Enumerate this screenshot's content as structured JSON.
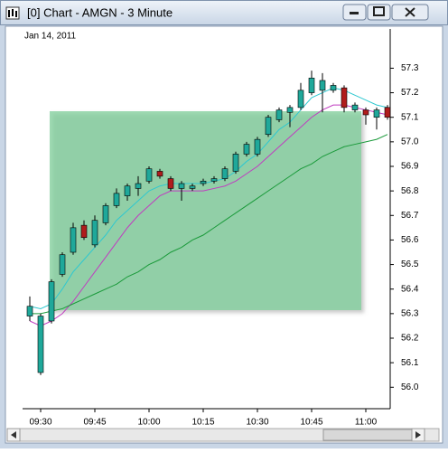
{
  "chart_data": {
    "type": "candlestick",
    "title": "[0] Chart - AMGN - 3 Minute",
    "subtitle": "Jan 14, 2011",
    "categories": [
      null,
      "09:30",
      null,
      null,
      null,
      null,
      "09:45",
      null,
      null,
      null,
      null,
      "10:00",
      null,
      null,
      null,
      null,
      "10:15",
      null,
      null,
      null,
      null,
      "10:30",
      null,
      null,
      null,
      null,
      "10:45",
      null,
      null,
      null,
      null,
      "11:00",
      null,
      null
    ],
    "open": [
      56.29,
      56.06,
      56.27,
      56.46,
      56.55,
      56.66,
      56.58,
      56.67,
      56.74,
      56.78,
      56.81,
      56.84,
      56.88,
      56.85,
      56.81,
      56.81,
      56.83,
      56.84,
      56.85,
      56.88,
      56.95,
      56.95,
      57.03,
      57.09,
      57.12,
      57.14,
      57.2,
      57.21,
      57.21,
      57.22,
      57.13,
      57.13,
      57.1,
      57.14
    ],
    "high": [
      56.37,
      56.3,
      56.44,
      56.55,
      56.67,
      56.68,
      56.7,
      56.75,
      56.81,
      56.83,
      56.86,
      56.9,
      56.89,
      56.86,
      56.84,
      56.83,
      56.85,
      56.86,
      56.9,
      56.96,
      57.0,
      57.02,
      57.11,
      57.14,
      57.15,
      57.24,
      57.29,
      57.28,
      57.24,
      57.23,
      57.16,
      57.14,
      57.14,
      57.15
    ],
    "low": [
      56.27,
      56.05,
      56.26,
      56.45,
      56.54,
      56.6,
      56.57,
      56.66,
      56.73,
      56.76,
      56.78,
      56.83,
      56.85,
      56.8,
      56.76,
      56.8,
      56.82,
      56.83,
      56.84,
      56.87,
      56.94,
      56.94,
      57.02,
      57.08,
      57.06,
      57.13,
      57.19,
      57.12,
      57.2,
      57.12,
      57.12,
      57.07,
      57.05,
      57.09
    ],
    "close": [
      56.33,
      56.29,
      56.43,
      56.54,
      56.65,
      56.61,
      56.68,
      56.74,
      56.79,
      56.82,
      56.83,
      56.89,
      56.86,
      56.81,
      56.83,
      56.82,
      56.84,
      56.85,
      56.89,
      56.95,
      56.99,
      57.01,
      57.1,
      57.13,
      57.14,
      57.21,
      57.26,
      57.25,
      57.23,
      57.14,
      57.15,
      57.11,
      57.13,
      57.1
    ],
    "up_color": "#1fa89a",
    "down_color": "#b01c1c",
    "lines": [
      {
        "color": "#2ec8d0",
        "values": [
          56.33,
          56.32,
          56.34,
          56.4,
          56.47,
          56.52,
          56.57,
          56.62,
          56.68,
          56.72,
          56.76,
          56.8,
          56.82,
          56.83,
          56.83,
          56.83,
          56.83,
          56.84,
          56.85,
          56.88,
          56.92,
          56.95,
          57.0,
          57.05,
          57.08,
          57.13,
          57.18,
          57.2,
          57.22,
          57.21,
          57.19,
          57.17,
          57.15,
          57.14
        ]
      },
      {
        "color": "#c03cc0",
        "values": [
          56.27,
          56.25,
          56.27,
          56.3,
          56.35,
          56.41,
          56.47,
          56.53,
          56.59,
          56.65,
          56.7,
          56.74,
          56.78,
          56.8,
          56.8,
          56.8,
          56.8,
          56.81,
          56.82,
          56.84,
          56.87,
          56.9,
          56.94,
          56.98,
          57.02,
          57.06,
          57.1,
          57.13,
          57.15,
          57.15,
          57.14,
          57.13,
          57.12,
          57.11
        ]
      },
      {
        "color": "#1a9a3a",
        "values": [
          56.3,
          56.3,
          56.31,
          56.32,
          56.34,
          56.36,
          56.38,
          56.4,
          56.42,
          56.45,
          56.47,
          56.5,
          56.52,
          56.55,
          56.57,
          56.6,
          56.62,
          56.65,
          56.68,
          56.71,
          56.74,
          56.77,
          56.8,
          56.83,
          56.86,
          56.89,
          56.91,
          56.94,
          56.96,
          56.98,
          56.99,
          57.0,
          57.01,
          57.03
        ]
      }
    ],
    "ylim": [
      55.92,
      57.46
    ],
    "yticks": [
      {
        "value": 56,
        "label": "56.0"
      },
      56.1,
      56.2,
      56.3,
      56.4,
      56.5,
      56.6,
      56.7,
      56.8,
      56.9,
      {
        "value": 57,
        "label": "57.0"
      },
      57.1,
      57.2,
      57.3
    ]
  }
}
